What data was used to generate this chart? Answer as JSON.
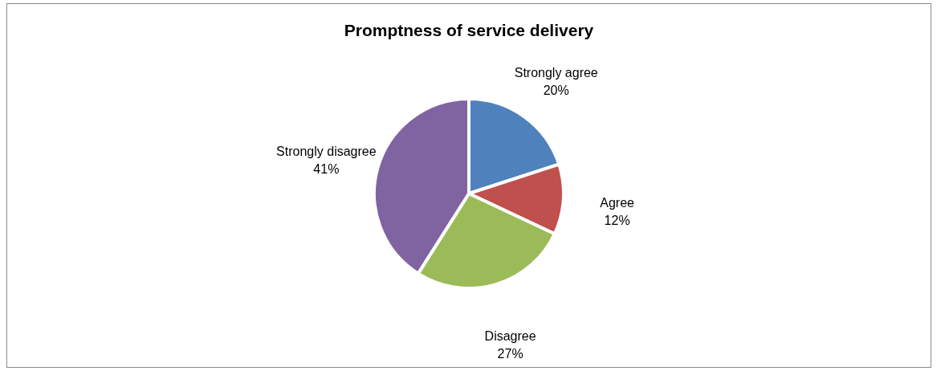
{
  "chart_data": {
    "type": "pie",
    "title": "Promptness of service delivery",
    "categories": [
      "Strongly agree",
      "Agree",
      "Disagree",
      "Strongly disagree"
    ],
    "values": [
      20,
      12,
      27,
      41
    ],
    "colors": [
      "#4f81bd",
      "#c0504d",
      "#9bbb59",
      "#8064a2"
    ],
    "value_labels": [
      "20%",
      "12%",
      "27%",
      "41%"
    ]
  }
}
